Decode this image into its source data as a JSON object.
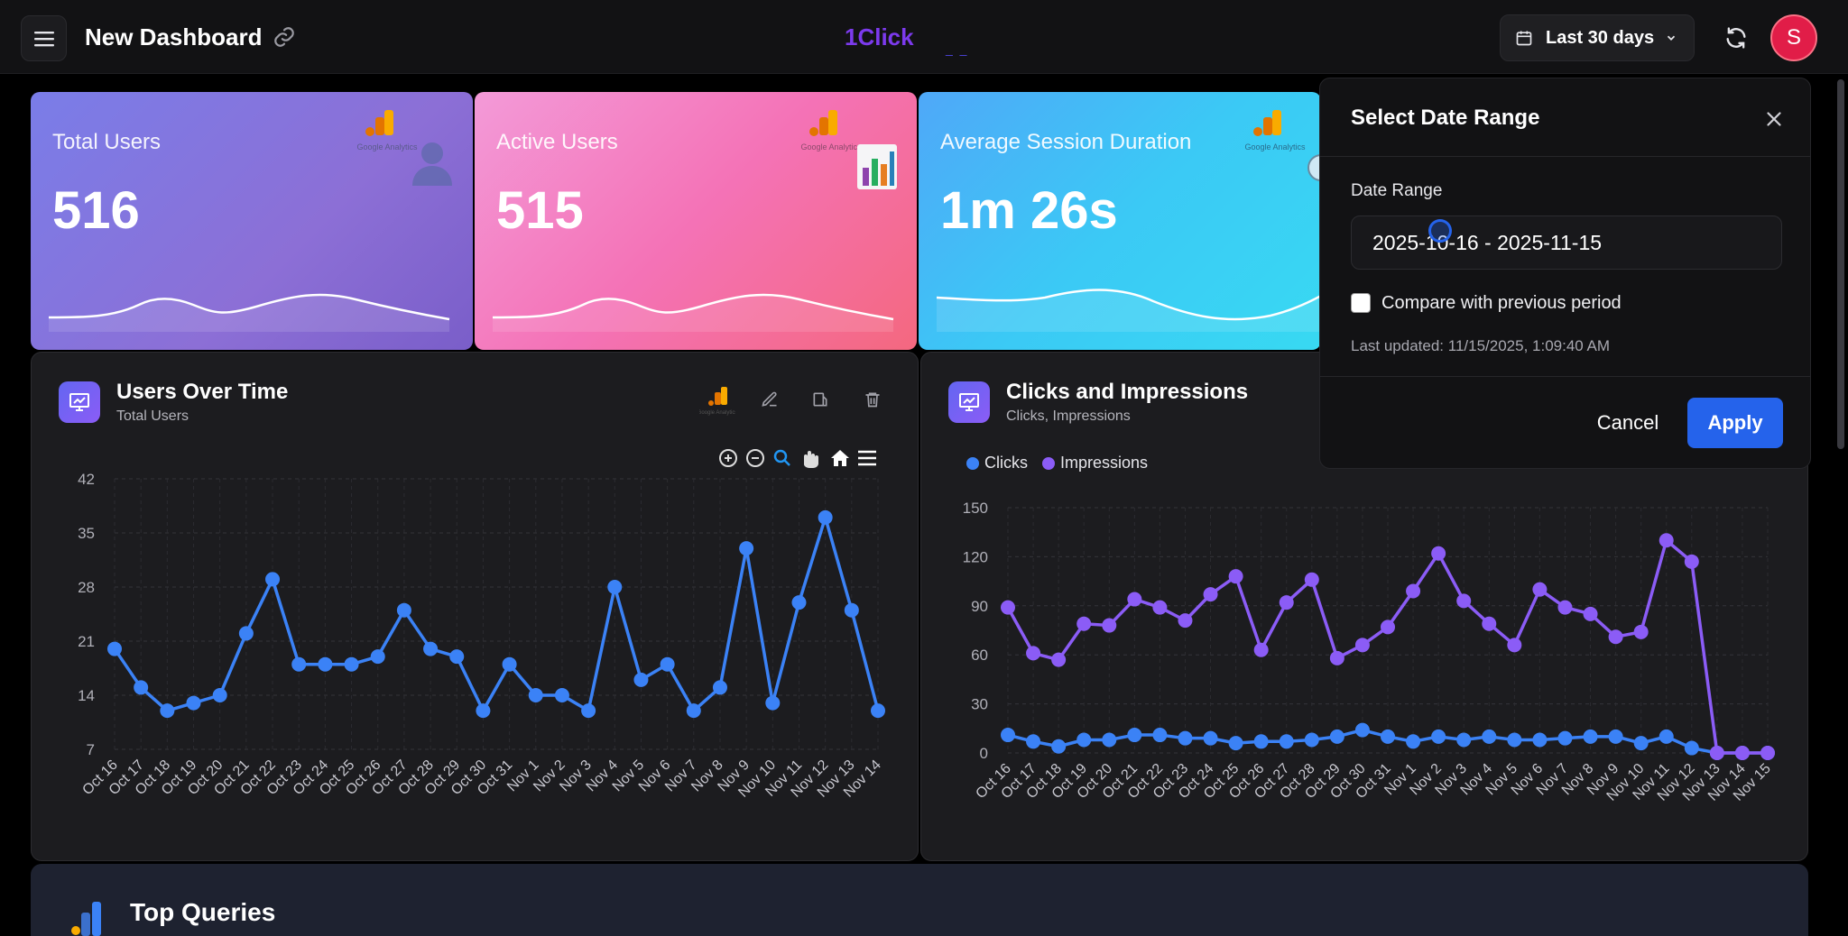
{
  "header": {
    "title": "New Dashboard",
    "brand": "1Click",
    "date_button": "Last 30 days",
    "avatar_letter": "S"
  },
  "stats": [
    {
      "label": "Total Users",
      "value": "516"
    },
    {
      "label": "Active Users",
      "value": "515"
    },
    {
      "label": "Average Session Duration",
      "value": "1m 26s"
    }
  ],
  "ga_caption": "Google Analytics",
  "users_chart": {
    "title": "Users Over Time",
    "subtitle": "Total Users"
  },
  "clicks_chart": {
    "title": "Clicks and Impressions",
    "subtitle": "Clicks, Impressions",
    "legend": [
      "Clicks",
      "Impressions"
    ]
  },
  "chart_data": [
    {
      "type": "line",
      "title": "Users Over Time",
      "subtitle": "Total Users",
      "x": [
        "Oct 16",
        "Oct 17",
        "Oct 18",
        "Oct 19",
        "Oct 20",
        "Oct 21",
        "Oct 22",
        "Oct 23",
        "Oct 24",
        "Oct 25",
        "Oct 26",
        "Oct 27",
        "Oct 28",
        "Oct 29",
        "Oct 30",
        "Oct 31",
        "Nov 1",
        "Nov 2",
        "Nov 3",
        "Nov 4",
        "Nov 5",
        "Nov 6",
        "Nov 7",
        "Nov 8",
        "Nov 9",
        "Nov 10",
        "Nov 11",
        "Nov 12",
        "Nov 13",
        "Nov 14"
      ],
      "series": [
        {
          "values": [
            20,
            15,
            12,
            13,
            14,
            22,
            29,
            18,
            18,
            18,
            19,
            25,
            20,
            19,
            12,
            18,
            14,
            14,
            12,
            28,
            16,
            18,
            12,
            15,
            33,
            13,
            26,
            37,
            25,
            12
          ]
        }
      ],
      "yticks": [
        7,
        14,
        21,
        28,
        35,
        42
      ],
      "ylim": [
        7,
        42
      ],
      "color": "#3b82f6"
    },
    {
      "type": "line",
      "title": "Clicks and Impressions",
      "subtitle": "Clicks, Impressions",
      "x": [
        "Oct 16",
        "Oct 17",
        "Oct 18",
        "Oct 19",
        "Oct 20",
        "Oct 21",
        "Oct 22",
        "Oct 23",
        "Oct 24",
        "Oct 25",
        "Oct 26",
        "Oct 27",
        "Oct 28",
        "Oct 29",
        "Oct 30",
        "Oct 31",
        "Nov 1",
        "Nov 2",
        "Nov 3",
        "Nov 4",
        "Nov 5",
        "Nov 6",
        "Nov 7",
        "Nov 8",
        "Nov 9",
        "Nov 10",
        "Nov 11",
        "Nov 12",
        "Nov 13",
        "Nov 14",
        "Nov 15"
      ],
      "series": [
        {
          "name": "Clicks",
          "color": "#3b82f6",
          "values": [
            11,
            7,
            4,
            8,
            8,
            11,
            11,
            9,
            9,
            6,
            7,
            7,
            8,
            10,
            14,
            10,
            7,
            10,
            8,
            10,
            8,
            8,
            9,
            10,
            10,
            6,
            10,
            3,
            0,
            0,
            0
          ]
        },
        {
          "name": "Impressions",
          "color": "#8b5cf6",
          "values": [
            89,
            61,
            57,
            79,
            78,
            94,
            89,
            81,
            97,
            108,
            63,
            92,
            106,
            58,
            66,
            77,
            99,
            122,
            93,
            79,
            66,
            100,
            89,
            85,
            71,
            74,
            130,
            117,
            0,
            0,
            0
          ]
        }
      ],
      "yticks": [
        0,
        30,
        60,
        90,
        120,
        150
      ],
      "ylim": [
        0,
        150
      ]
    }
  ],
  "modal": {
    "title": "Select Date Range",
    "date_label": "Date Range",
    "date_value": "2025-10-16 - 2025-11-15",
    "compare_label": "Compare with previous period",
    "updated": "Last updated: 11/15/2025, 1:09:40 AM",
    "cancel": "Cancel",
    "apply": "Apply"
  },
  "bottom": {
    "title": "Top Queries"
  }
}
